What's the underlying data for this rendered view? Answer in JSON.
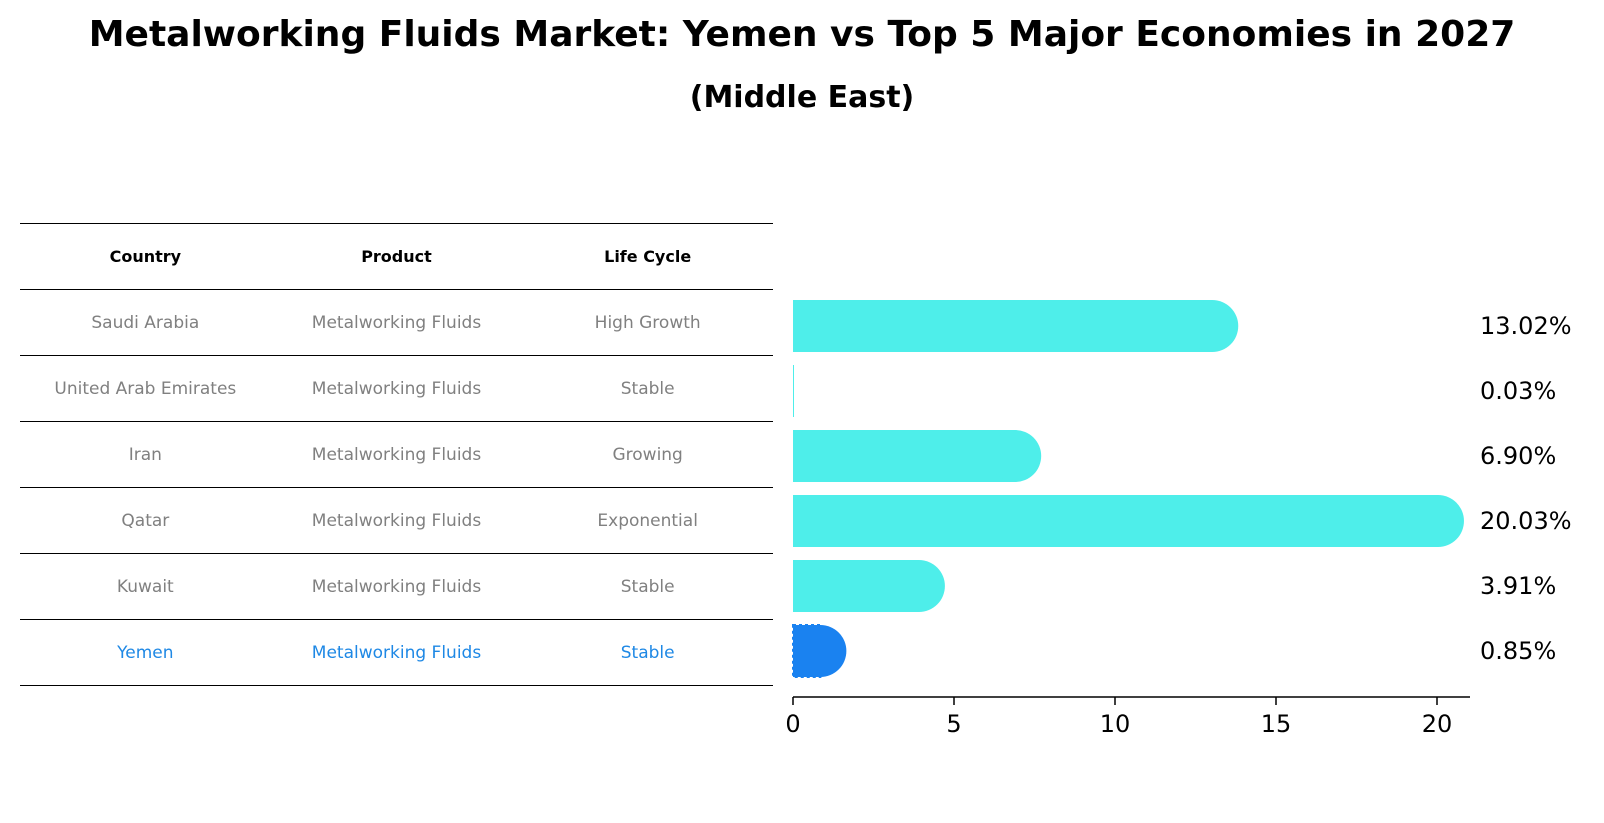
{
  "title": "Metalworking Fluids Market: Yemen vs Top 5 Major Economies in 2027",
  "subtitle": "(Middle East)",
  "table": {
    "headers": [
      "Country",
      "Product",
      "Life Cycle"
    ],
    "rows": [
      [
        "Saudi Arabia",
        "Metalworking Fluids",
        "High Growth"
      ],
      [
        "United Arab Emirates",
        "Metalworking Fluids",
        "Stable"
      ],
      [
        "Iran",
        "Metalworking Fluids",
        "Growing"
      ],
      [
        "Qatar",
        "Metalworking Fluids",
        "Exponential"
      ],
      [
        "Kuwait",
        "Metalworking Fluids",
        "Stable"
      ],
      [
        "Yemen",
        "Metalworking Fluids",
        "Stable"
      ]
    ],
    "highlight_row": 5,
    "text_color": "#808080",
    "highlight_color": "#1e88e5"
  },
  "chart_data": {
    "type": "bar",
    "orientation": "horizontal",
    "categories": [
      "Saudi Arabia",
      "United Arab Emirates",
      "Iran",
      "Qatar",
      "Kuwait",
      "Yemen"
    ],
    "values": [
      13.02,
      0.03,
      6.9,
      20.03,
      3.91,
      0.85
    ],
    "value_labels": [
      "13.02%",
      "0.03%",
      "6.90%",
      "20.03%",
      "3.91%",
      "0.85%"
    ],
    "xlim": [
      0,
      21
    ],
    "xticks": [
      0,
      5,
      10,
      15,
      20
    ],
    "bar_color": "#4eeeea",
    "highlight_color": "#1a82f0",
    "highlight_index": 5,
    "grid": false
  }
}
